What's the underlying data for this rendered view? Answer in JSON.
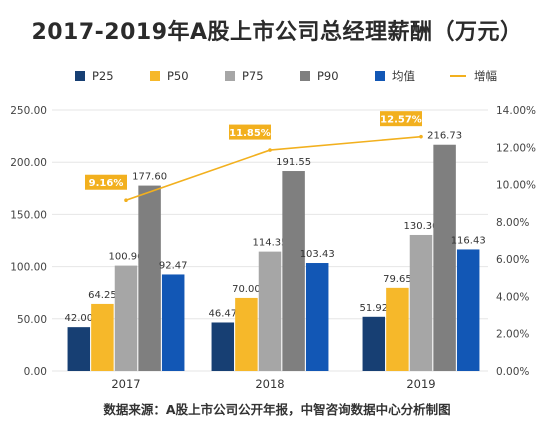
{
  "colors": {
    "P25": "#173f73",
    "P50": "#f6b82a",
    "P75": "#a6a6a6",
    "P90": "#7f7f7f",
    "mean": "#1257b5",
    "growth": "#f2b01e",
    "growth_label_bg": "#f2b01e",
    "growth_label_text": "#ffffff",
    "grid": "#e6e6e6",
    "axis_text": "#444444"
  },
  "chart_data": {
    "type": "bar",
    "title": "2017-2019年A股上市公司总经理薪酬（万元）",
    "source": "数据来源：A股上市公司公开年报，中智咨询数据中心分析制图",
    "categories": [
      "2017",
      "2018",
      "2019"
    ],
    "series": [
      {
        "name": "P25",
        "values": [
          42.0,
          46.47,
          51.92
        ],
        "labels": [
          "42.00",
          "46.47",
          "51.92"
        ]
      },
      {
        "name": "P50",
        "values": [
          64.25,
          70.0,
          79.65
        ],
        "labels": [
          "64.25",
          "70.00",
          "79.65"
        ]
      },
      {
        "name": "P75",
        "values": [
          100.96,
          114.35,
          130.3
        ],
        "labels": [
          "100.96",
          "114.35",
          "130.30"
        ]
      },
      {
        "name": "P90",
        "values": [
          177.6,
          191.55,
          216.73
        ],
        "labels": [
          "177.60",
          "191.55",
          "216.73"
        ]
      },
      {
        "name": "均值",
        "values": [
          92.47,
          103.43,
          116.43
        ],
        "labels": [
          "92.47",
          "103.43",
          "116.43"
        ]
      }
    ],
    "line_series": {
      "name": "增幅",
      "values": [
        9.16,
        11.85,
        12.57
      ],
      "labels": [
        "9.16%",
        "11.85%",
        "12.57%"
      ],
      "axis": "right"
    },
    "y_left": {
      "lim": [
        0,
        250
      ],
      "ticks": [
        0,
        50,
        100,
        150,
        200,
        250
      ],
      "tick_labels": [
        "0.00",
        "50.00",
        "100.00",
        "150.00",
        "200.00",
        "250.00"
      ]
    },
    "y_right": {
      "lim": [
        0,
        14
      ],
      "ticks": [
        0,
        2,
        4,
        6,
        8,
        10,
        12,
        14
      ],
      "tick_labels": [
        "0.00%",
        "2.00%",
        "4.00%",
        "6.00%",
        "8.00%",
        "10.00%",
        "12.00%",
        "14.00%"
      ]
    },
    "legend_position": "top",
    "grid": true
  }
}
